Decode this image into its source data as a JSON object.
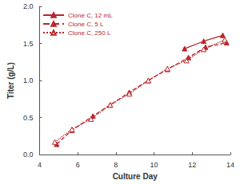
{
  "chart_data": {
    "type": "line",
    "x_label": "Culture Day",
    "y_label": "Titer (g/L)",
    "xlim": [
      4,
      14
    ],
    "xticks": [
      4,
      6,
      8,
      10,
      12,
      14
    ],
    "ylim": [
      0,
      2
    ],
    "yticks": [
      {
        "value": 0,
        "label": "0.0"
      },
      0.5,
      {
        "value": 1,
        "label": "1.0"
      },
      1.5,
      {
        "value": 2,
        "label": "2.0"
      }
    ],
    "grid": false,
    "legend": "upper left",
    "series": [
      {
        "name": "Clone C, 12 mL",
        "color": "#b8272c",
        "marker": "triangle",
        "line_style": "solid",
        "x": [
          11.6,
          12.6,
          13.6
        ],
        "values": [
          1.43,
          1.53,
          1.61
        ]
      },
      {
        "name": "Clone C, 5 L",
        "color": "#b8272c",
        "marker": "triangle",
        "line_style": "dashed",
        "x": [
          4.9,
          5.7,
          6.8,
          7.7,
          8.7,
          9.7,
          10.7,
          11.8,
          12.7,
          13.8
        ],
        "values": [
          0.14,
          0.33,
          0.52,
          0.67,
          0.84,
          1.0,
          1.15,
          1.31,
          1.45,
          1.51
        ]
      },
      {
        "name": "Clone C, 250 L",
        "color": "#b8272c",
        "marker": "triangle-open",
        "line_style": "dotted",
        "x": [
          4.8,
          5.7,
          6.7,
          7.7,
          8.7,
          9.7,
          10.7,
          11.7,
          12.6,
          13.7
        ],
        "values": [
          0.17,
          0.34,
          0.48,
          0.67,
          0.82,
          1.0,
          1.16,
          1.27,
          1.42,
          1.55
        ]
      }
    ]
  }
}
